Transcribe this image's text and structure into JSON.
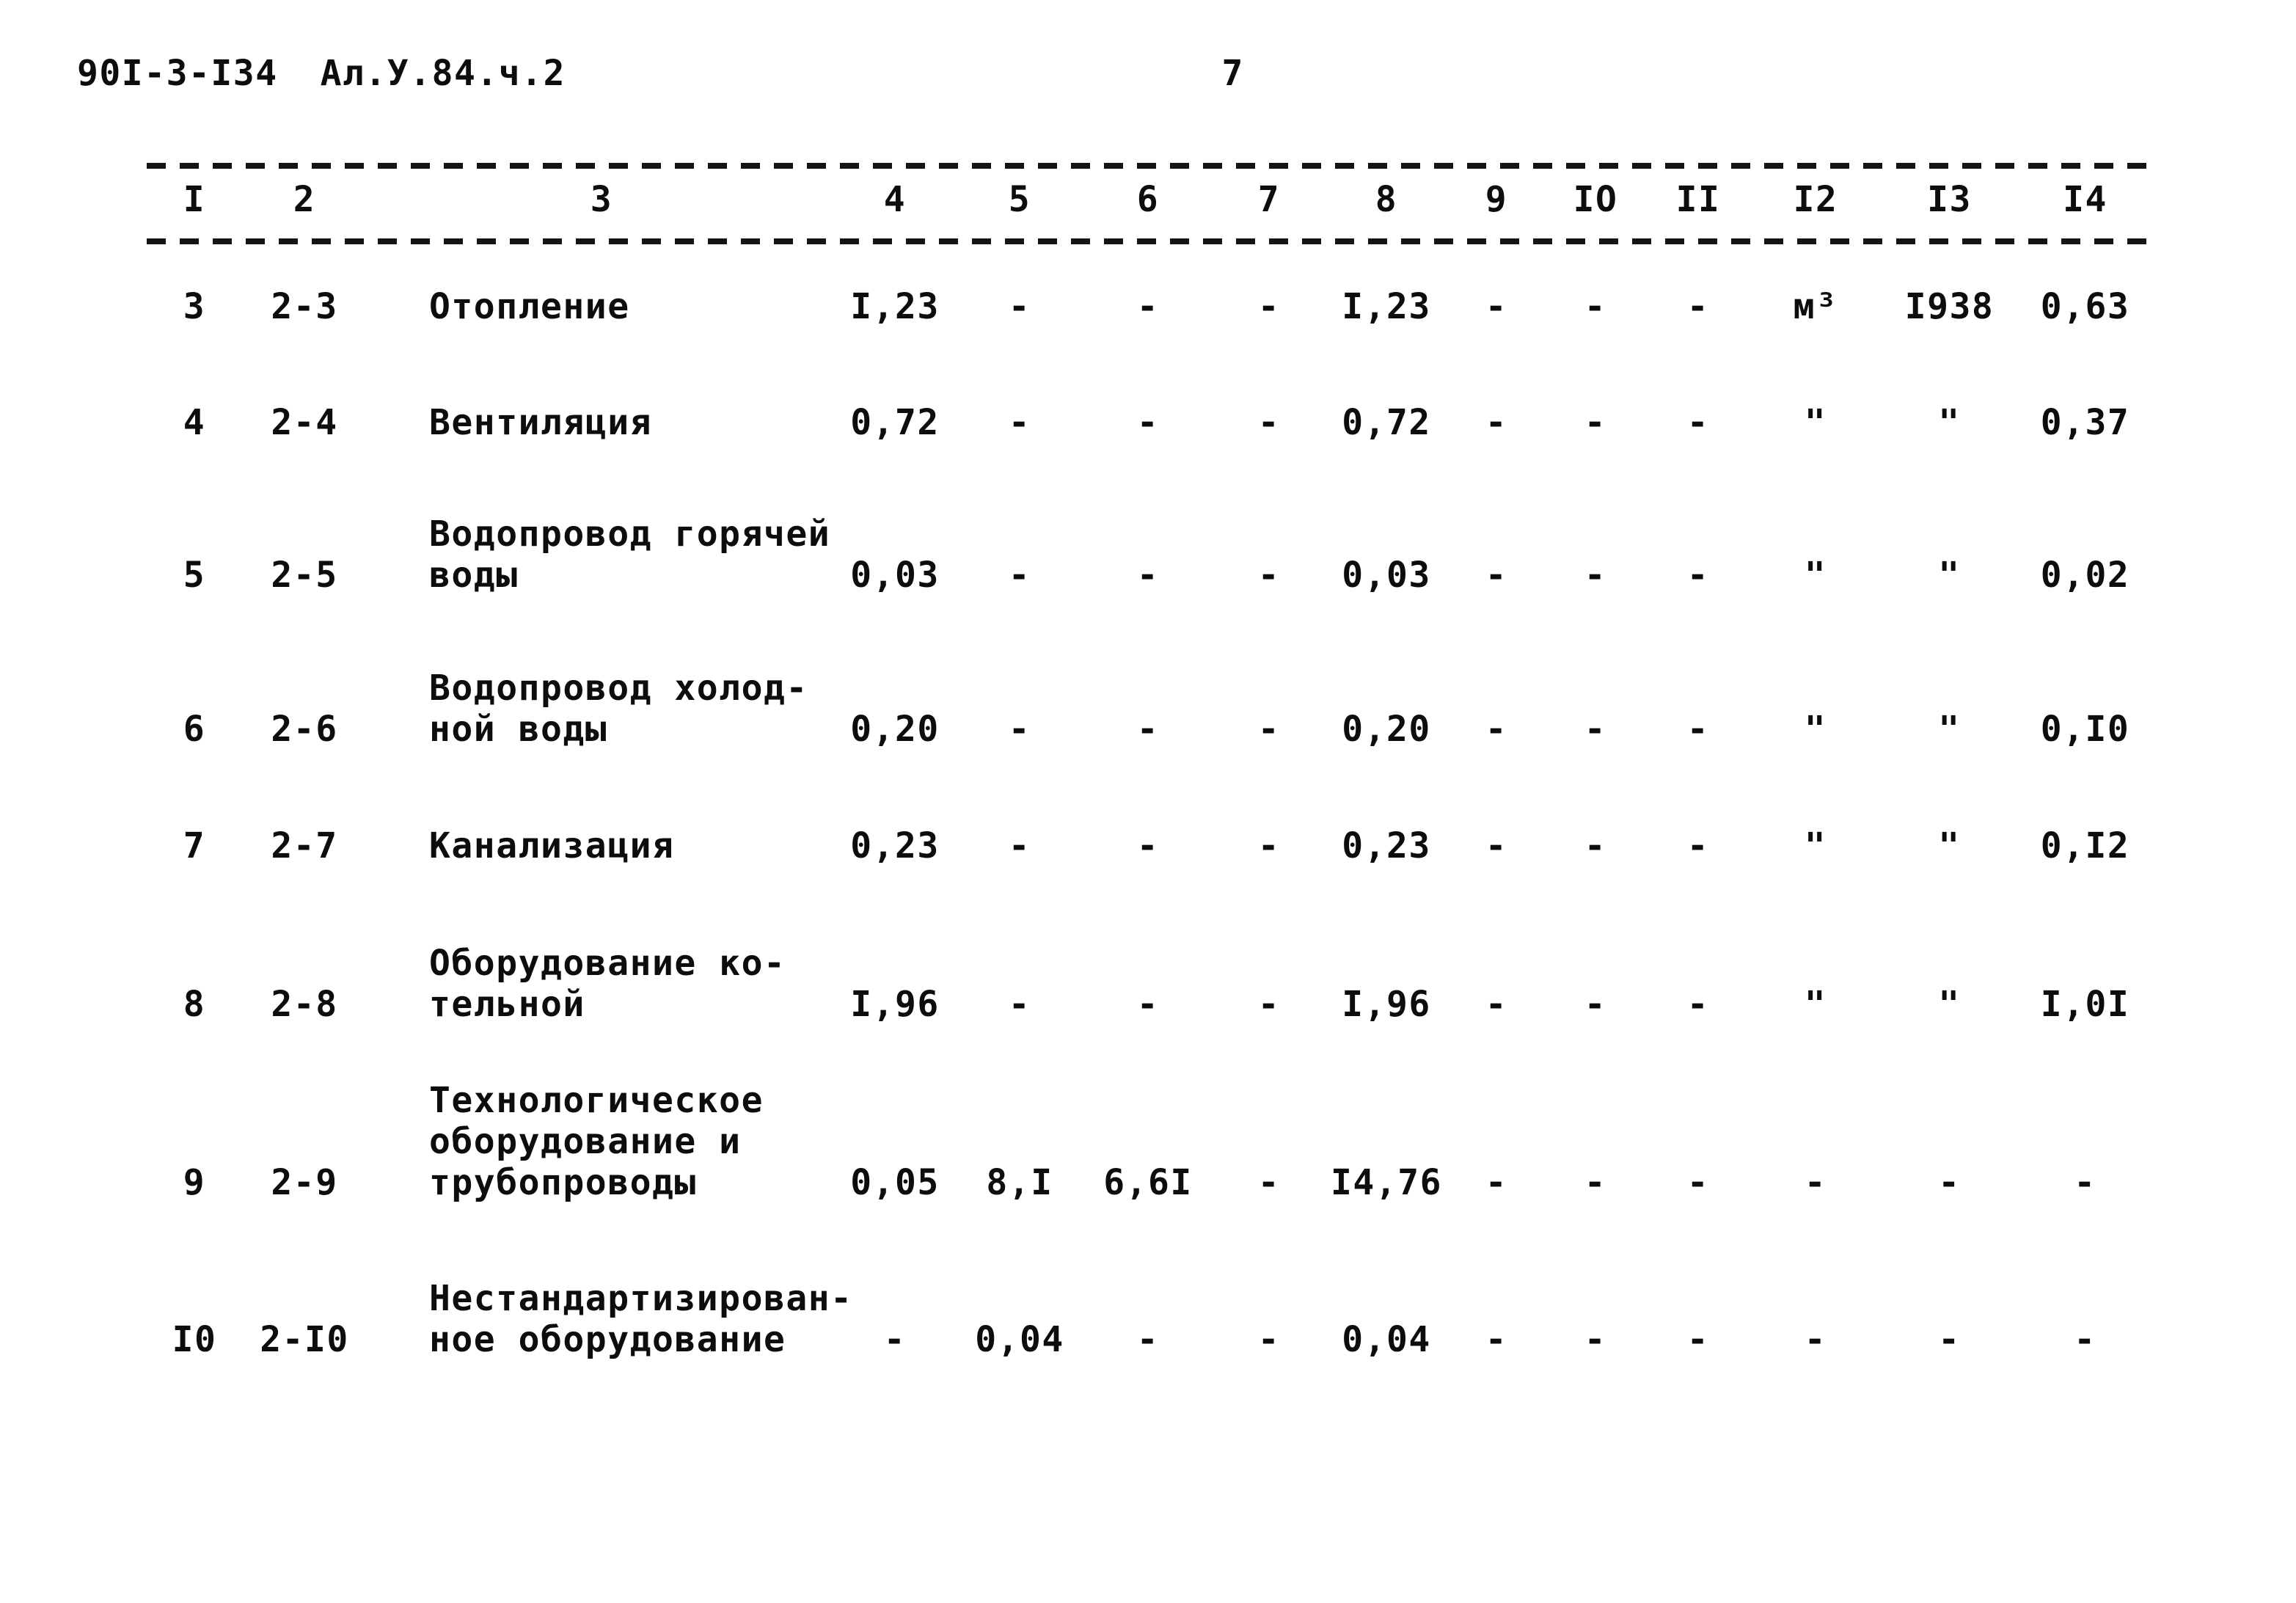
{
  "page": {
    "doc_number": "90I-3-I34",
    "doc_code": "Ал.У.84.ч.2",
    "page_number": "7"
  },
  "table": {
    "column_headers": [
      "I",
      "2",
      "3",
      "4",
      "5",
      "6",
      "7",
      "8",
      "9",
      "IO",
      "II",
      "I2",
      "I3",
      "I4"
    ],
    "rows": [
      {
        "cells": [
          "3",
          "2-3",
          "Отопление",
          "I,23",
          "-",
          "-",
          "-",
          "I,23",
          "-",
          "-",
          "-",
          "м³",
          "I938",
          "0,63"
        ]
      },
      {
        "cells": [
          "4",
          "2-4",
          "Вентиляция",
          "0,72",
          "-",
          "-",
          "-",
          "0,72",
          "-",
          "-",
          "-",
          "\"",
          "\"",
          "0,37"
        ]
      },
      {
        "cells": [
          "5",
          "2-5",
          "Водопровод горячей\nводы",
          "0,03",
          "-",
          "-",
          "-",
          "0,03",
          "-",
          "-",
          "-",
          "\"",
          "\"",
          "0,02"
        ]
      },
      {
        "cells": [
          "6",
          "2-6",
          "Водопровод холод-\nной воды",
          "0,20",
          "-",
          "-",
          "-",
          "0,20",
          "-",
          "-",
          "-",
          "\"",
          "\"",
          "0,I0"
        ]
      },
      {
        "cells": [
          "7",
          "2-7",
          "Канализация",
          "0,23",
          "-",
          "-",
          "-",
          "0,23",
          "-",
          "-",
          "-",
          "\"",
          "\"",
          "0,I2"
        ]
      },
      {
        "cells": [
          "8",
          "2-8",
          "Оборудование ко-\nтельной",
          "I,96",
          "-",
          "-",
          "-",
          "I,96",
          "-",
          "-",
          "-",
          "\"",
          "\"",
          "I,0I"
        ]
      },
      {
        "cells": [
          "9",
          "2-9",
          "Технологическое\nоборудование и\nтрубопроводы",
          "0,05",
          "8,I",
          "6,6I",
          "-",
          "I4,76",
          "-",
          "-",
          "-",
          "-",
          "-",
          "-"
        ]
      },
      {
        "cells": [
          "I0",
          "2-I0",
          "Нестандартизирован-\nное оборудование",
          "-",
          "0,04",
          "-",
          "-",
          "0,04",
          "-",
          "-",
          "-",
          "-",
          "-",
          "-"
        ]
      }
    ]
  }
}
